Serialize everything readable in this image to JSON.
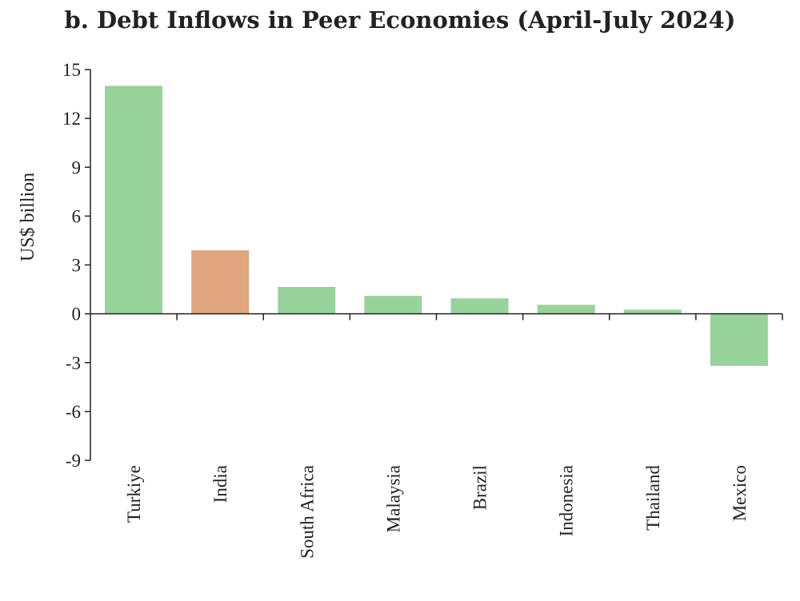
{
  "chart_data": {
    "type": "bar",
    "title": "b. Debt Inflows in Peer Economies (April-July 2024)",
    "xlabel": "",
    "ylabel": "US$ billion",
    "ylim": [
      -9,
      15
    ],
    "yticks": [
      15,
      12,
      9,
      6,
      3,
      0,
      -3,
      -6,
      -9
    ],
    "categories": [
      "Turkiye",
      "India",
      "South Africa",
      "Malaysia",
      "Brazil",
      "Indonesia",
      "Thailand",
      "Mexico"
    ],
    "values": [
      14.0,
      3.9,
      1.65,
      1.1,
      0.95,
      0.55,
      0.25,
      -3.2
    ],
    "colors": [
      "#97d39a",
      "#e0a47f",
      "#97d39a",
      "#97d39a",
      "#97d39a",
      "#97d39a",
      "#97d39a",
      "#97d39a"
    ],
    "grid": false,
    "legend": "none"
  }
}
